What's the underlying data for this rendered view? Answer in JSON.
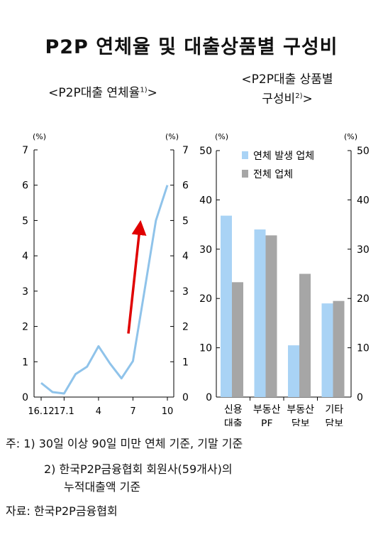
{
  "title": "P2P 연체율 및 대출상품별 구성비",
  "chart_data": [
    {
      "type": "line",
      "subtitle": "<P2P대출 연체율",
      "subtitle_note": "1)",
      "subtitle_close": ">",
      "unit_label": "(%)",
      "y_ticks": [
        "0",
        "1",
        "2",
        "3",
        "4",
        "5",
        "6",
        "7"
      ],
      "ylim": [
        0,
        7
      ],
      "x_tick_labels": [
        {
          "label": "16.12",
          "index": 0
        },
        {
          "label": "17.1",
          "index": 2
        },
        {
          "label": "4",
          "index": 5
        },
        {
          "label": "7",
          "index": 8
        },
        {
          "label": "10",
          "index": 11
        }
      ],
      "x_values": [
        0,
        1,
        2,
        3,
        4,
        5,
        6,
        7,
        8,
        9,
        10,
        11
      ],
      "values": [
        0.4,
        0.14,
        0.1,
        0.65,
        0.86,
        1.44,
        0.95,
        0.53,
        1.02,
        3.0,
        5.0,
        6.0
      ],
      "series_color": "#8fc3ea",
      "annotation": {
        "type": "arrow",
        "color": "#e00000",
        "from": [
          7.6,
          1.8
        ],
        "to": [
          8.6,
          4.8
        ]
      }
    },
    {
      "type": "bar",
      "subtitle_line1": "<P2P대출 상품별",
      "subtitle_line2": "구성비",
      "subtitle_note": "2)",
      "subtitle_close": ">",
      "unit_label": "(%)",
      "y_ticks": [
        "0",
        "10",
        "20",
        "30",
        "40",
        "50"
      ],
      "ylim": [
        0,
        50
      ],
      "categories": [
        {
          "line1": "신용",
          "line2": "대출"
        },
        {
          "line1": "부동산",
          "line2": "PF"
        },
        {
          "line1": "부동산",
          "line2": "담보"
        },
        {
          "line1": "기타",
          "line2": "담보"
        }
      ],
      "series": [
        {
          "name": "연체 발생 업체",
          "color": "#a9d3f5",
          "values": [
            36.8,
            34.0,
            10.5,
            19.0
          ]
        },
        {
          "name": "전체 업체",
          "color": "#a6a6a6",
          "values": [
            23.3,
            32.8,
            25.0,
            19.5
          ]
        }
      ]
    }
  ],
  "notes": {
    "line1": "주:  1)  30일 이상 90일 미만 연체 기준, 기말 기준",
    "line2": "2) 한국P2P금융협회  회원사(59개사)의",
    "line3": "누적대출액  기준",
    "source": "자료:  한국P2P금융협회"
  }
}
